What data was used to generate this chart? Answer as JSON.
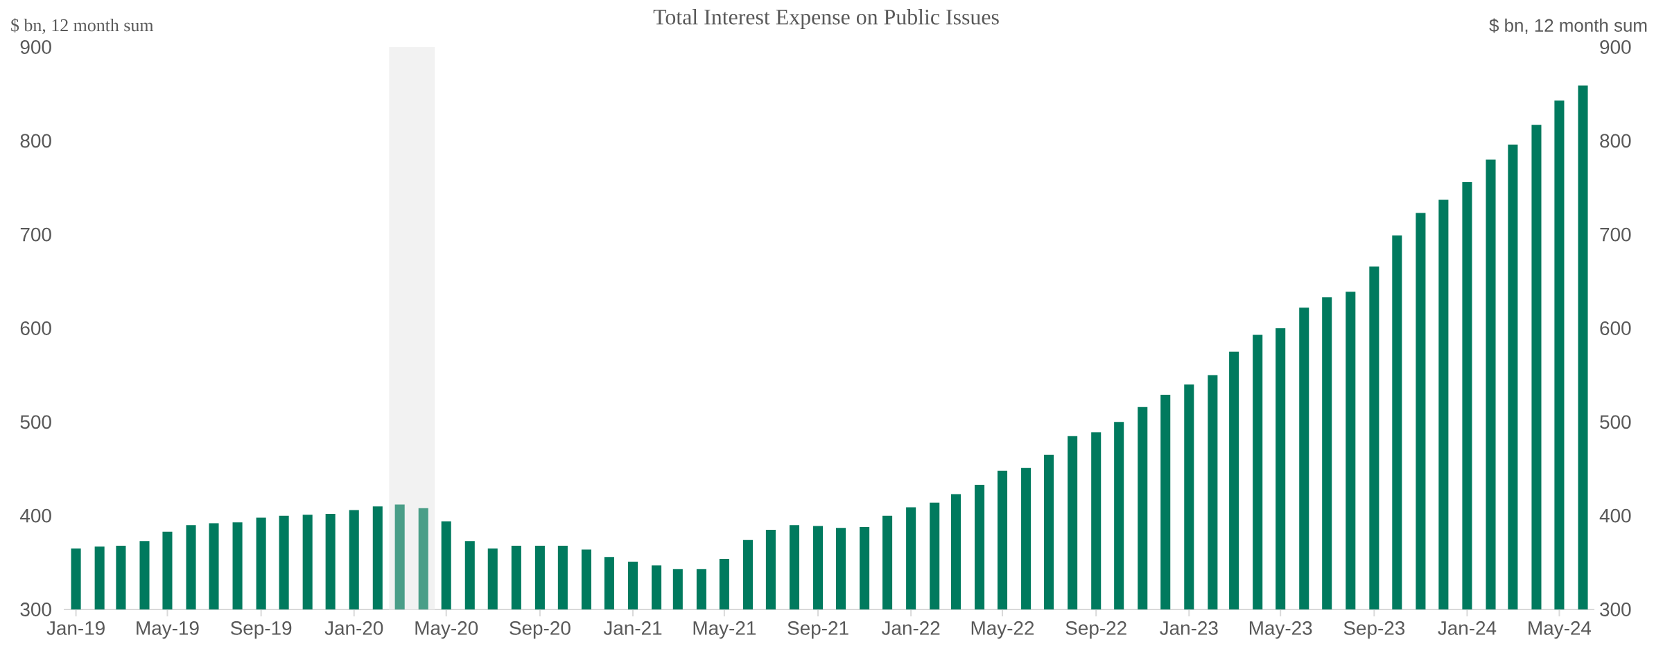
{
  "chart_data": {
    "type": "bar",
    "title": "Total Interest Expense on Public Issues",
    "ylabel": "$ bn, 12 month sum",
    "y2label": "$ bn, 12 month sum",
    "x": [
      "2019-01",
      "2019-02",
      "2019-03",
      "2019-04",
      "2019-05",
      "2019-06",
      "2019-07",
      "2019-08",
      "2019-09",
      "2019-10",
      "2019-11",
      "2019-12",
      "2020-01",
      "2020-02",
      "2020-03",
      "2020-04",
      "2020-05",
      "2020-06",
      "2020-07",
      "2020-08",
      "2020-09",
      "2020-10",
      "2020-11",
      "2020-12",
      "2021-01",
      "2021-02",
      "2021-03",
      "2021-04",
      "2021-05",
      "2021-06",
      "2021-07",
      "2021-08",
      "2021-09",
      "2021-10",
      "2021-11",
      "2021-12",
      "2022-01",
      "2022-02",
      "2022-03",
      "2022-04",
      "2022-05",
      "2022-06",
      "2022-07",
      "2022-08",
      "2022-09",
      "2022-10",
      "2022-11",
      "2022-12",
      "2023-01",
      "2023-02",
      "2023-03",
      "2023-04",
      "2023-05",
      "2023-06",
      "2023-07",
      "2023-08",
      "2023-09",
      "2023-10",
      "2023-11",
      "2023-12",
      "2024-01",
      "2024-02",
      "2024-03",
      "2024-04",
      "2024-05",
      "2024-06"
    ],
    "values": [
      365,
      367,
      368,
      373,
      383,
      390,
      392,
      393,
      398,
      400,
      401,
      402,
      406,
      410,
      412,
      408,
      394,
      373,
      365,
      368,
      368,
      368,
      364,
      356,
      351,
      347,
      343,
      343,
      354,
      374,
      385,
      390,
      389,
      387,
      388,
      400,
      409,
      414,
      423,
      433,
      448,
      451,
      465,
      485,
      489,
      500,
      516,
      529,
      540,
      550,
      575,
      593,
      600,
      622,
      633,
      639,
      666,
      699,
      723,
      737,
      756,
      780,
      796,
      817,
      843,
      859
    ],
    "colors": [
      "#007a5e",
      "#007a5e",
      "#007a5e",
      "#007a5e",
      "#007a5e",
      "#007a5e",
      "#007a5e",
      "#007a5e",
      "#007a5e",
      "#007a5e",
      "#007a5e",
      "#007a5e",
      "#007a5e",
      "#007a5e",
      "#4a9e88",
      "#4a9e88",
      "#007a5e",
      "#007a5e",
      "#007a5e",
      "#007a5e",
      "#007a5e",
      "#007a5e",
      "#007a5e",
      "#007a5e",
      "#007a5e",
      "#007a5e",
      "#007a5e",
      "#007a5e",
      "#007a5e",
      "#007a5e",
      "#007a5e",
      "#007a5e",
      "#007a5e",
      "#007a5e",
      "#007a5e",
      "#007a5e",
      "#007a5e",
      "#007a5e",
      "#007a5e",
      "#007a5e",
      "#007a5e",
      "#007a5e",
      "#007a5e",
      "#007a5e",
      "#007a5e",
      "#007a5e",
      "#007a5e",
      "#007a5e",
      "#007a5e",
      "#007a5e",
      "#007a5e",
      "#007a5e",
      "#007a5e",
      "#007a5e",
      "#007a5e",
      "#007a5e",
      "#007a5e",
      "#007a5e",
      "#007a5e",
      "#007a5e",
      "#007a5e",
      "#007a5e",
      "#007a5e",
      "#007a5e",
      "#007a5e",
      "#007a5e"
    ],
    "xlim": [
      "2018-12-16",
      "2024-06-16"
    ],
    "xticks": [
      {
        "value": "2019-01",
        "label": "Jan-19"
      },
      {
        "value": "2019-05",
        "label": "May-19"
      },
      {
        "value": "2019-09",
        "label": "Sep-19"
      },
      {
        "value": "2020-01",
        "label": "Jan-20"
      },
      {
        "value": "2020-05",
        "label": "May-20"
      },
      {
        "value": "2020-09",
        "label": "Sep-20"
      },
      {
        "value": "2021-01",
        "label": "Jan-21"
      },
      {
        "value": "2021-05",
        "label": "May-21"
      },
      {
        "value": "2021-09",
        "label": "Sep-21"
      },
      {
        "value": "2022-01",
        "label": "Jan-22"
      },
      {
        "value": "2022-05",
        "label": "May-22"
      },
      {
        "value": "2022-09",
        "label": "Sep-22"
      },
      {
        "value": "2023-01",
        "label": "Jan-23"
      },
      {
        "value": "2023-05",
        "label": "May-23"
      },
      {
        "value": "2023-09",
        "label": "Sep-23"
      },
      {
        "value": "2024-01",
        "label": "Jan-24"
      },
      {
        "value": "2024-05",
        "label": "May-24"
      }
    ],
    "ylim": [
      300,
      900
    ],
    "yticks": [
      300,
      400,
      500,
      600,
      700,
      800,
      900
    ],
    "y2lim": [
      300,
      900
    ],
    "y2ticks": [
      300,
      400,
      500,
      600,
      700,
      800,
      900
    ],
    "bands": [
      {
        "axis": "x",
        "from": "2020-02-16",
        "to": "2020-04-16",
        "color": "#f2f2f2"
      }
    ]
  }
}
